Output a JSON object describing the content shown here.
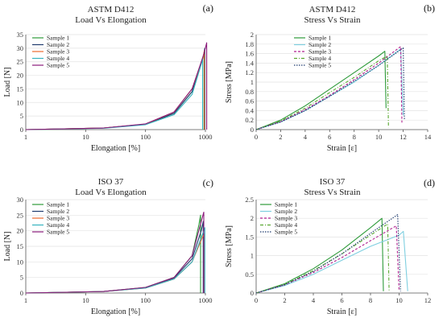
{
  "chart_data": [
    {
      "id": "a",
      "letter": "(a)",
      "type": "line",
      "title": [
        "ASTM D412",
        "Load Vs Elongation"
      ],
      "xlabel": "Elongation [%]",
      "ylabel": "Load [N]",
      "xscale": "log",
      "xlim": [
        1,
        1000
      ],
      "ylim": [
        0,
        35
      ],
      "xticks": [
        1,
        10,
        100,
        1000
      ],
      "xticklabels": [
        "1",
        "10",
        "100",
        "1000"
      ],
      "yticks": [
        0,
        5,
        10,
        15,
        20,
        25,
        30,
        35
      ],
      "legend": "top-left",
      "series": [
        {
          "name": "Sample 1",
          "color": "#2e9b3a",
          "dash": "",
          "points": [
            [
              1,
              0
            ],
            [
              20,
              0.6
            ],
            [
              100,
              2
            ],
            [
              300,
              6
            ],
            [
              600,
              14
            ],
            [
              900,
              26
            ],
            [
              950,
              28
            ],
            [
              950,
              0
            ]
          ]
        },
        {
          "name": "Sample 2",
          "color": "#1f3b6e",
          "dash": "",
          "points": [
            [
              1,
              0
            ],
            [
              20,
              0.6
            ],
            [
              100,
              2
            ],
            [
              300,
              6
            ],
            [
              600,
              14
            ],
            [
              920,
              27
            ],
            [
              980,
              30
            ],
            [
              980,
              0
            ]
          ]
        },
        {
          "name": "Sample 3",
          "color": "#ec6a2e",
          "dash": "",
          "points": [
            [
              1,
              0
            ],
            [
              20,
              0.6
            ],
            [
              100,
              2
            ],
            [
              300,
              6.5
            ],
            [
              600,
              15
            ],
            [
              900,
              26
            ],
            [
              960,
              29
            ],
            [
              960,
              0
            ]
          ]
        },
        {
          "name": "Sample 4",
          "color": "#36b3bf",
          "dash": "",
          "points": [
            [
              1,
              0
            ],
            [
              20,
              0.5
            ],
            [
              100,
              1.8
            ],
            [
              300,
              5.5
            ],
            [
              600,
              13
            ],
            [
              850,
              24
            ],
            [
              900,
              26
            ],
            [
              900,
              0
            ]
          ]
        },
        {
          "name": "Sample 5",
          "color": "#8a1a7a",
          "dash": "",
          "points": [
            [
              1,
              0
            ],
            [
              20,
              0.6
            ],
            [
              100,
              2.1
            ],
            [
              300,
              6.5
            ],
            [
              600,
              15
            ],
            [
              950,
              28
            ],
            [
              1050,
              32
            ],
            [
              1050,
              0
            ]
          ]
        }
      ]
    },
    {
      "id": "b",
      "letter": "(b)",
      "type": "line",
      "title": [
        "ASTM D412",
        "Stress Vs Strain"
      ],
      "xlabel": "Strain [ε]",
      "ylabel": "Stress [MPa]",
      "xscale": "linear",
      "xlim": [
        0,
        14
      ],
      "ylim": [
        0,
        2
      ],
      "xticks": [
        0,
        2,
        4,
        6,
        8,
        10,
        12,
        14
      ],
      "yticks": [
        0,
        0.2,
        0.4,
        0.6,
        0.8,
        1,
        1.2,
        1.4,
        1.6,
        1.8,
        2
      ],
      "yticklabels": [
        "0",
        "0.2",
        "0.4",
        "0.6",
        "0.8",
        "1",
        "1.2",
        "1.4",
        "1.6",
        "1.8",
        "2"
      ],
      "legend": "top-center",
      "series": [
        {
          "name": "Sample 1",
          "color": "#2e9b3a",
          "dash": "",
          "points": [
            [
              0,
              0
            ],
            [
              2,
              0.2
            ],
            [
              4,
              0.5
            ],
            [
              6,
              0.85
            ],
            [
              8,
              1.2
            ],
            [
              10,
              1.55
            ],
            [
              10.5,
              1.65
            ],
            [
              10.6,
              0.45
            ]
          ]
        },
        {
          "name": "Sample 2",
          "color": "#7fcfe0",
          "dash": "",
          "points": [
            [
              0,
              0
            ],
            [
              2,
              0.16
            ],
            [
              4,
              0.4
            ],
            [
              6,
              0.7
            ],
            [
              8,
              1.0
            ],
            [
              10,
              1.35
            ],
            [
              11.8,
              1.7
            ],
            [
              12,
              0.3
            ]
          ]
        },
        {
          "name": "Sample 3",
          "color": "#b0208f",
          "dash": "3,2",
          "points": [
            [
              0,
              0
            ],
            [
              2,
              0.17
            ],
            [
              4,
              0.42
            ],
            [
              6,
              0.72
            ],
            [
              8,
              1.05
            ],
            [
              10,
              1.4
            ],
            [
              11.8,
              1.75
            ],
            [
              11.9,
              0.15
            ]
          ]
        },
        {
          "name": "Sample 4",
          "color": "#5aa832",
          "dash": "4,2,1,2",
          "points": [
            [
              0,
              0
            ],
            [
              2,
              0.18
            ],
            [
              4,
              0.45
            ],
            [
              6,
              0.78
            ],
            [
              8,
              1.1
            ],
            [
              10,
              1.45
            ],
            [
              10.7,
              1.55
            ],
            [
              10.8,
              0.05
            ]
          ]
        },
        {
          "name": "Sample 5",
          "color": "#1f3b6e",
          "dash": "1.5,1.5",
          "points": [
            [
              0,
              0
            ],
            [
              2,
              0.16
            ],
            [
              4,
              0.4
            ],
            [
              6,
              0.7
            ],
            [
              8,
              1.02
            ],
            [
              10,
              1.35
            ],
            [
              12,
              1.72
            ],
            [
              12.1,
              0.2
            ]
          ]
        }
      ]
    },
    {
      "id": "c",
      "letter": "(c)",
      "type": "line",
      "title": [
        "ISO 37",
        "Load Vs Elongation"
      ],
      "xlabel": "Elongation [%]",
      "ylabel": "Load [N]",
      "xscale": "log",
      "xlim": [
        1,
        1000
      ],
      "ylim": [
        0,
        30
      ],
      "xticks": [
        1,
        10,
        100,
        1000
      ],
      "xticklabels": [
        "1",
        "10",
        "100",
        "1000"
      ],
      "yticks": [
        0,
        5,
        10,
        15,
        20,
        25,
        30
      ],
      "legend": "top-left",
      "series": [
        {
          "name": "Sample 1",
          "color": "#2e9b3a",
          "dash": "",
          "points": [
            [
              1,
              0
            ],
            [
              20,
              0.5
            ],
            [
              100,
              1.8
            ],
            [
              300,
              5
            ],
            [
              600,
              12
            ],
            [
              780,
              22
            ],
            [
              830,
              25
            ],
            [
              830,
              0
            ]
          ]
        },
        {
          "name": "Sample 2",
          "color": "#1f3b6e",
          "dash": "",
          "points": [
            [
              1,
              0
            ],
            [
              20,
              0.5
            ],
            [
              100,
              1.7
            ],
            [
              300,
              4.8
            ],
            [
              600,
              11
            ],
            [
              850,
              20
            ],
            [
              920,
              23
            ],
            [
              920,
              0
            ]
          ]
        },
        {
          "name": "Sample 3",
          "color": "#ec6a2e",
          "dash": "",
          "points": [
            [
              1,
              0
            ],
            [
              20,
              0.5
            ],
            [
              100,
              1.6
            ],
            [
              300,
              4.5
            ],
            [
              600,
              10
            ],
            [
              850,
              17
            ],
            [
              950,
              19
            ],
            [
              950,
              0
            ]
          ]
        },
        {
          "name": "Sample 4",
          "color": "#36b3bf",
          "dash": "",
          "points": [
            [
              1,
              0
            ],
            [
              20,
              0.5
            ],
            [
              100,
              1.6
            ],
            [
              300,
              4.5
            ],
            [
              600,
              10
            ],
            [
              900,
              19
            ],
            [
              980,
              21
            ],
            [
              980,
              0
            ]
          ]
        },
        {
          "name": "Sample 5",
          "color": "#8a1a7a",
          "dash": "",
          "points": [
            [
              1,
              0
            ],
            [
              20,
              0.5
            ],
            [
              100,
              1.8
            ],
            [
              300,
              5
            ],
            [
              600,
              12
            ],
            [
              880,
              24
            ],
            [
              940,
              26
            ],
            [
              940,
              0
            ]
          ]
        }
      ]
    },
    {
      "id": "d",
      "letter": "(d)",
      "type": "line",
      "title": [
        "ISO 37",
        "Stress Vs Strain"
      ],
      "xlabel": "Strain [ε]",
      "ylabel": "Stress [MPa]",
      "xscale": "linear",
      "xlim": [
        0,
        12
      ],
      "ylim": [
        0,
        2.5
      ],
      "xticks": [
        0,
        2,
        4,
        6,
        8,
        10,
        12
      ],
      "yticks": [
        0,
        0.5,
        1,
        1.5,
        2,
        2.5
      ],
      "yticklabels": [
        "0",
        "0.5",
        "1",
        "1.5",
        "2",
        "2.5"
      ],
      "legend": "top-left",
      "series": [
        {
          "name": "Sample 1",
          "color": "#2e9b3a",
          "dash": "",
          "points": [
            [
              0,
              0
            ],
            [
              2,
              0.25
            ],
            [
              4,
              0.65
            ],
            [
              6,
              1.15
            ],
            [
              8,
              1.75
            ],
            [
              8.8,
              2.0
            ],
            [
              8.9,
              0.05
            ]
          ]
        },
        {
          "name": "Sample 2",
          "color": "#7fcfe0",
          "dash": "",
          "points": [
            [
              0,
              0
            ],
            [
              2,
              0.2
            ],
            [
              4,
              0.5
            ],
            [
              6,
              0.88
            ],
            [
              8,
              1.25
            ],
            [
              10,
              1.55
            ],
            [
              10.3,
              1.65
            ],
            [
              10.6,
              0.05
            ]
          ]
        },
        {
          "name": "Sample 3",
          "color": "#b0208f",
          "dash": "3,2",
          "points": [
            [
              0,
              0
            ],
            [
              2,
              0.22
            ],
            [
              4,
              0.55
            ],
            [
              6,
              0.95
            ],
            [
              8,
              1.4
            ],
            [
              9.8,
              1.8
            ],
            [
              10,
              0.05
            ]
          ]
        },
        {
          "name": "Sample 4",
          "color": "#5aa832",
          "dash": "4,2,1,2",
          "points": [
            [
              0,
              0
            ],
            [
              2,
              0.23
            ],
            [
              4,
              0.6
            ],
            [
              6,
              1.05
            ],
            [
              8,
              1.55
            ],
            [
              9.2,
              1.85
            ],
            [
              9.3,
              0.05
            ]
          ]
        },
        {
          "name": "Sample 5",
          "color": "#1f3b6e",
          "dash": "1.5,1.5",
          "points": [
            [
              0,
              0
            ],
            [
              2,
              0.22
            ],
            [
              4,
              0.58
            ],
            [
              6,
              1.05
            ],
            [
              8,
              1.6
            ],
            [
              9.9,
              2.1
            ],
            [
              10.1,
              0.05
            ]
          ]
        }
      ]
    }
  ]
}
